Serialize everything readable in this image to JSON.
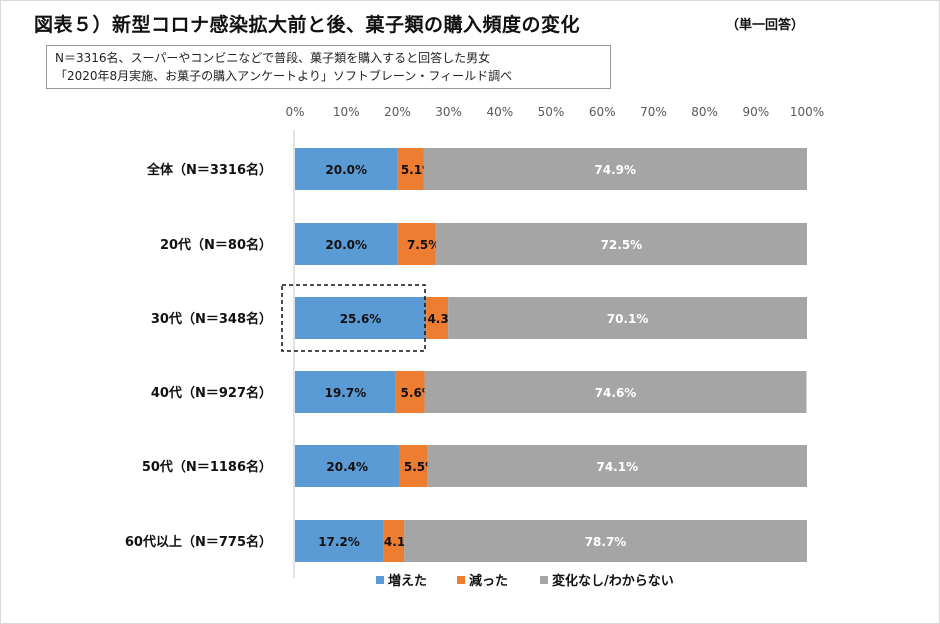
{
  "title": "図表５）新型コロナ感染拡大前と後、菓子類の購入頻度の変化",
  "note": "（単一回答）",
  "subtitle_lines": [
    "N＝3316名、スーパーやコンビニなどで普段、菓子類を購入すると回答した男女",
    "「2020年8月実施、お菓子の購入アンケートより」ソフトブレーン・フィールド調べ"
  ],
  "chart_data": {
    "type": "bar",
    "orientation": "horizontal",
    "stacked": "percent",
    "title": "図表５）新型コロナ感染拡大前と後、菓子類の購入頻度の変化",
    "categories": [
      "全体（N＝3316名）",
      "20代（N＝80名）",
      "30代（N＝348名）",
      "40代（N＝927名）",
      "50代（N＝1186名）",
      "60代以上（N＝775名）"
    ],
    "series": [
      {
        "name": "増えた",
        "color": "#5b9bd5",
        "values": [
          20.0,
          20.0,
          25.6,
          19.7,
          20.4,
          17.2
        ]
      },
      {
        "name": "減った",
        "color": "#ed7d31",
        "values": [
          5.1,
          7.5,
          4.3,
          5.6,
          5.5,
          4.1
        ]
      },
      {
        "name": "変化なし/わからない",
        "color": "#a5a5a5",
        "values": [
          74.9,
          72.5,
          70.1,
          74.6,
          74.1,
          78.7
        ]
      }
    ],
    "xlim": [
      0,
      100
    ],
    "xticks": [
      "0%",
      "10%",
      "20%",
      "30%",
      "40%",
      "50%",
      "60%",
      "70%",
      "80%",
      "90%",
      "100%"
    ],
    "grid": false,
    "legend": "bottom",
    "highlight": {
      "category": "30代（N＝348名）",
      "series": "増えた",
      "style": "dashed-box"
    }
  }
}
